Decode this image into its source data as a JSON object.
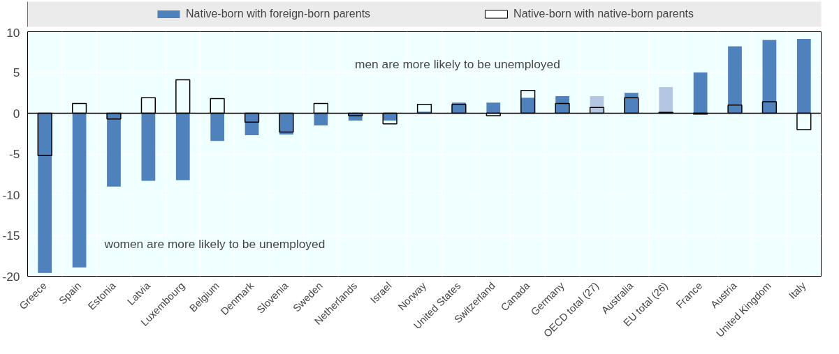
{
  "chart_data": {
    "type": "bar",
    "categories": [
      "Greece",
      "Spain",
      "Estonia",
      "Latvia",
      "Luxembourg",
      "Belgium",
      "Denmark",
      "Slovenia",
      "Sweden",
      "Netherlands",
      "Israel",
      "Norway",
      "United States",
      "Switzerland",
      "Canada",
      "Germany",
      "OECD total (27)",
      "Australia",
      "EU total (26)",
      "France",
      "Austria",
      "United Kingdom",
      "Italy"
    ],
    "series": [
      {
        "name": "Native-born with foreign-born parents",
        "color": "#4f81bd",
        "colors": [
          "#4f81bd",
          "#4f81bd",
          "#4f81bd",
          "#4f81bd",
          "#4f81bd",
          "#4f81bd",
          "#4f81bd",
          "#4f81bd",
          "#4f81bd",
          "#4f81bd",
          "#4f81bd",
          "#4f81bd",
          "#4f81bd",
          "#4f81bd",
          "#4f81bd",
          "#4f81bd",
          "#b3c7e3",
          "#4f81bd",
          "#b3c7e3",
          "#4f81bd",
          "#4f81bd",
          "#4f81bd",
          "#4f81bd"
        ],
        "values": [
          -19.6,
          -18.9,
          -9.0,
          -8.3,
          -8.2,
          -3.4,
          -2.7,
          -2.6,
          -1.5,
          -0.9,
          -0.9,
          0.2,
          1.3,
          1.3,
          1.9,
          2.1,
          2.1,
          2.5,
          3.2,
          5.0,
          8.2,
          9.0,
          9.1
        ]
      },
      {
        "name": "Native-born with native-born parents",
        "color": "#000000",
        "values": [
          -5.2,
          1.2,
          -0.7,
          1.9,
          4.1,
          1.8,
          -1.1,
          -2.3,
          1.2,
          -0.3,
          -1.3,
          1.1,
          1.1,
          -0.3,
          2.8,
          1.2,
          0.7,
          1.9,
          0.1,
          -0.1,
          1.0,
          1.4,
          -2.0
        ]
      }
    ],
    "ylim": [
      -20,
      10
    ],
    "yticks": [
      -20,
      -15,
      -10,
      -5,
      0,
      5,
      10
    ],
    "grid": true,
    "legend": "top",
    "annotations": [
      "men are more likely to be unemployed",
      "women are more likely to be unemployed"
    ]
  }
}
